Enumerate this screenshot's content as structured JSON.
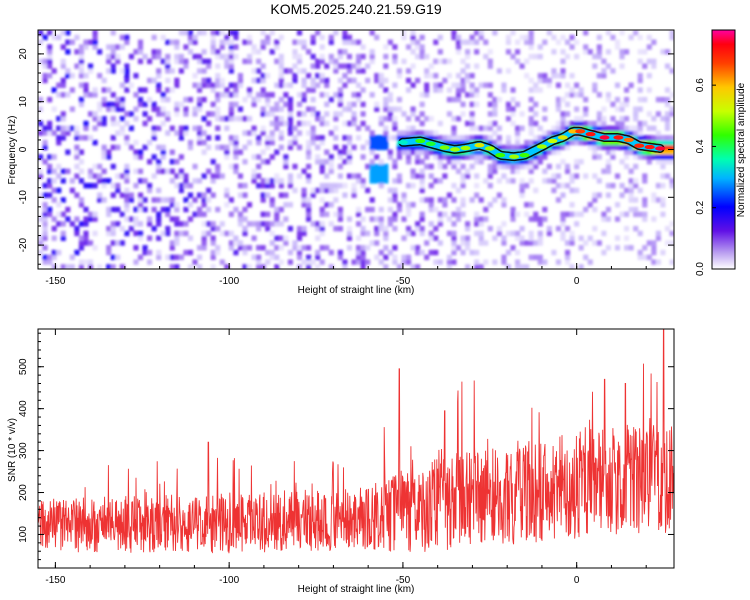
{
  "chart_data": [
    {
      "type": "heatmap",
      "title": "KOM5.2025.240.21.59.G19",
      "xlabel": "Height of straight line (km)",
      "ylabel": "Frequency (Hz)",
      "xlim": [
        -155,
        28
      ],
      "ylim": [
        -25,
        25
      ],
      "xticks": [
        -150,
        -100,
        -50,
        0
      ],
      "yticks": [
        -20,
        -10,
        0,
        10,
        20
      ],
      "xtick_labels": [
        "-150",
        "-100",
        "-50",
        "0"
      ],
      "ytick_labels": [
        "-20",
        "-10",
        "0",
        "10",
        "20"
      ],
      "colorbar": {
        "label": "Normalized spectral amplitude",
        "range": [
          0,
          0.78
        ],
        "ticks": [
          0.0,
          0.2,
          0.4,
          0.6
        ],
        "tick_labels": [
          "0.0",
          "0.2",
          "0.4",
          "0.6"
        ]
      },
      "ridge": {
        "name": "Doppler ridge",
        "x": [
          -50,
          -45,
          -42,
          -38,
          -35,
          -32,
          -28,
          -25,
          -22,
          -18,
          -15,
          -10,
          -7,
          -4,
          -1,
          1,
          4,
          8,
          12,
          15,
          18,
          21,
          24
        ],
        "frequency": [
          1.5,
          1.8,
          1.2,
          0.4,
          0.0,
          0.3,
          0.9,
          0.2,
          -1.2,
          -1.5,
          -1.2,
          0.6,
          1.8,
          2.5,
          3.8,
          3.8,
          3.2,
          2.5,
          2.5,
          2.0,
          0.8,
          0.5,
          0.2
        ],
        "amplitude": [
          0.35,
          0.45,
          0.42,
          0.48,
          0.5,
          0.5,
          0.55,
          0.5,
          0.45,
          0.5,
          0.45,
          0.5,
          0.52,
          0.55,
          0.6,
          0.68,
          0.72,
          0.75,
          0.72,
          0.65,
          0.7,
          0.72,
          0.75
        ]
      },
      "noise_level_left": 0.15,
      "noise_level_right": 0.06
    },
    {
      "type": "line",
      "xlabel": "Height of straight line (km)",
      "ylabel": "SNR (10 * v/v)",
      "xlim": [
        -155,
        28
      ],
      "ylim": [
        20,
        590
      ],
      "xticks": [
        -150,
        -100,
        -50,
        0
      ],
      "yticks": [
        100,
        200,
        300,
        400,
        500
      ],
      "xtick_labels": [
        "-150",
        "-100",
        "-50",
        "0"
      ],
      "ytick_labels": [
        "100",
        "200",
        "300",
        "400",
        "500"
      ],
      "series": [
        {
          "name": "SNR",
          "color": "#ee3333",
          "trend_x": [
            -155,
            -100,
            -60,
            -50,
            -30,
            0,
            28
          ],
          "trend_baseline": [
            115,
            120,
            130,
            145,
            175,
            205,
            230
          ],
          "trend_spread": [
            80,
            90,
            95,
            130,
            150,
            160,
            180
          ],
          "peak_values": [
            {
              "x": -51,
              "y": 495
            },
            {
              "x": 25,
              "y": 590
            },
            {
              "x": -106,
              "y": 320
            },
            {
              "x": -38,
              "y": 395
            },
            {
              "x": 14,
              "y": 460
            },
            {
              "x": 8,
              "y": 470
            }
          ]
        }
      ]
    }
  ]
}
